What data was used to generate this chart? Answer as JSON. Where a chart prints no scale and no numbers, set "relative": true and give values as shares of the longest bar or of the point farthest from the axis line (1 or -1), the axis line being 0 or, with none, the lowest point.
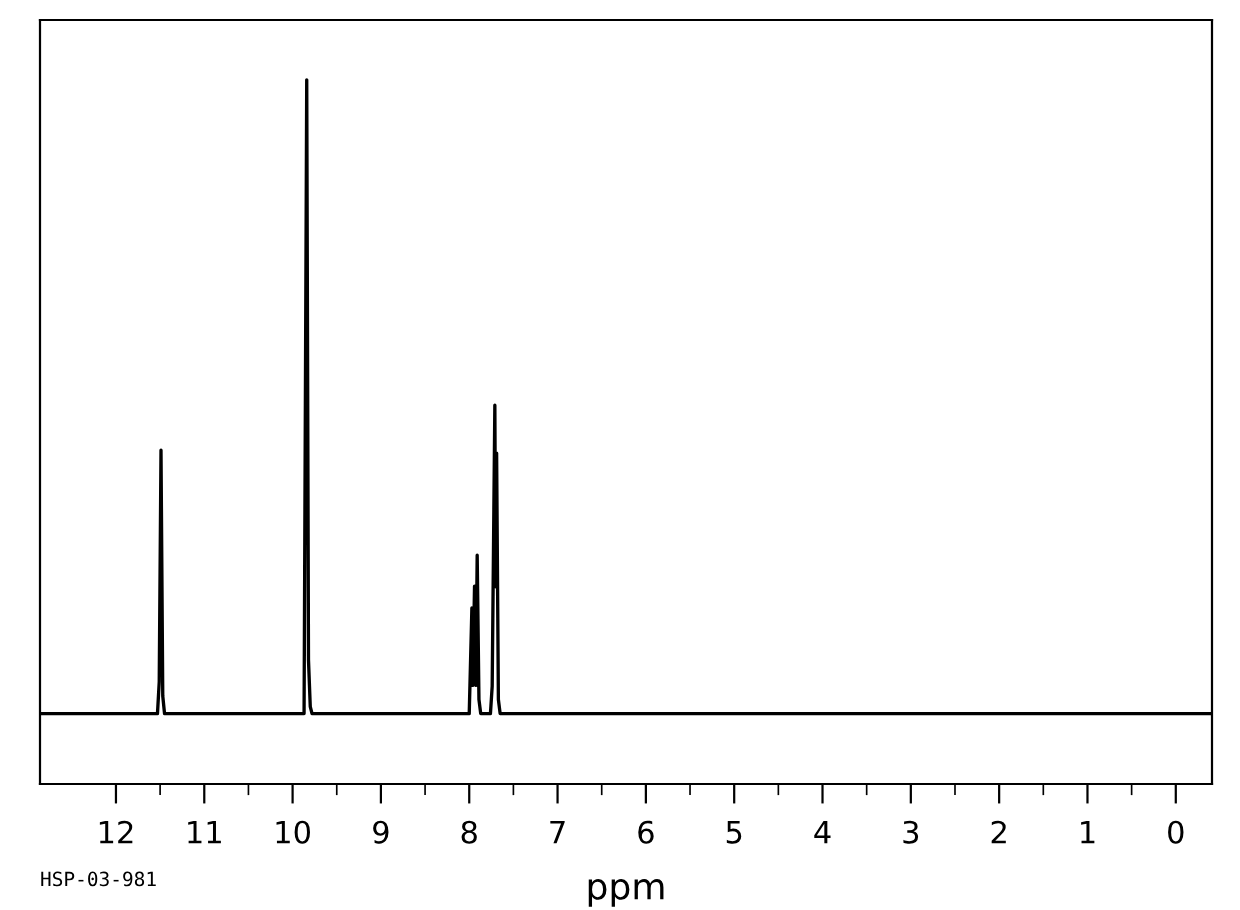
{
  "chart_data": {
    "type": "line",
    "relative": true,
    "xlabel": "ppm",
    "annotations": [
      "HSP-03-981"
    ],
    "tick_labels": "x",
    "grid": false,
    "xlim": [
      12.86,
      -0.41
    ],
    "xticks": [
      12,
      {
        "value": 11.5,
        "label": null
      },
      11,
      {
        "value": 10.5,
        "label": null
      },
      10,
      {
        "value": 9.5,
        "label": null
      },
      9,
      {
        "value": 8.5,
        "label": null
      },
      8,
      {
        "value": 7.5,
        "label": null
      },
      7,
      {
        "value": 6.5,
        "label": null
      },
      6,
      {
        "value": 5.5,
        "label": null
      },
      5,
      {
        "value": 4.5,
        "label": null
      },
      4,
      {
        "value": 3.5,
        "label": null
      },
      3,
      {
        "value": 2.5,
        "label": null
      },
      2,
      {
        "value": 1.5,
        "label": null
      },
      1,
      {
        "value": 0.5,
        "label": null
      },
      0
    ],
    "series": [
      {
        "color": "#000000",
        "x": [
          12.85,
          11.53,
          11.51,
          11.49,
          11.47,
          11.45,
          9.87,
          9.84,
          9.82,
          9.8,
          9.78,
          8.0,
          7.97,
          7.96,
          7.94,
          7.925,
          7.91,
          7.89,
          7.87,
          7.76,
          7.74,
          7.71,
          7.7,
          7.69,
          7.67,
          7.65,
          -0.4
        ],
        "values": [
          0.1,
          0.1,
          0.145,
          0.474,
          0.125,
          0.1,
          0.1,
          1.0,
          0.176,
          0.11,
          0.1,
          0.1,
          0.25,
          0.14,
          0.281,
          0.14,
          0.325,
          0.12,
          0.1,
          0.1,
          0.139,
          0.538,
          0.28,
          0.47,
          0.12,
          0.1,
          0.1
        ]
      }
    ]
  }
}
